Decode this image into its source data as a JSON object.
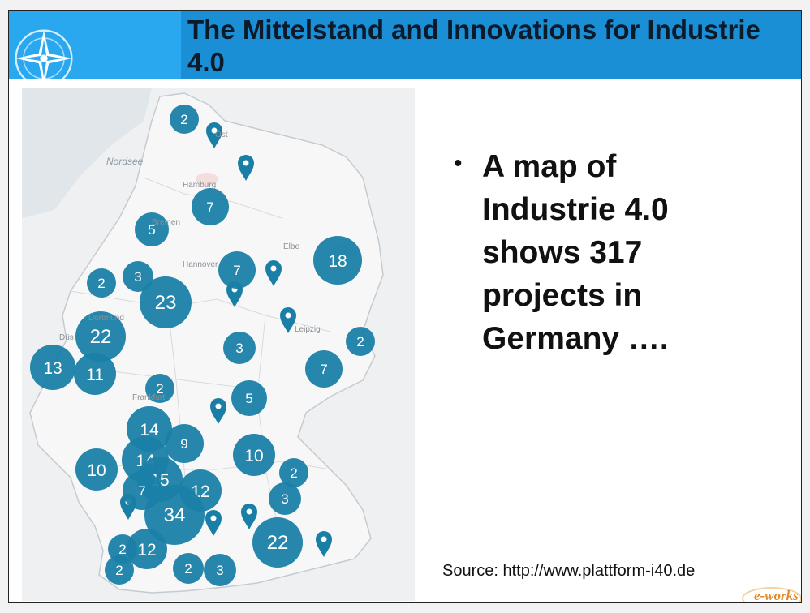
{
  "header": {
    "title": "The Mittelstand and Innovations for Industrie 4.0",
    "logo_icon": "compass-star-icon",
    "colors": {
      "band": "#1a8fd6",
      "band_left": "#2aa8ef",
      "title_text": "#0d1a2a"
    }
  },
  "map": {
    "marker_color": "#1a7fa6",
    "places": {
      "nordsee": "Nordsee",
      "ostsee": "Ost",
      "hamburg": "Hamburg",
      "bremen": "Bremen",
      "hannover": "Hannover",
      "elbe": "Elbe",
      "leipzig": "Leipzig",
      "duesseldorf": "Düs",
      "dortmund": "Dortmund",
      "frankfurt": "Frankfurt"
    },
    "clusters": [
      {
        "id": "c1",
        "count": "2"
      },
      {
        "id": "c2",
        "count": "7"
      },
      {
        "id": "c3",
        "count": "5"
      },
      {
        "id": "c4",
        "count": "18"
      },
      {
        "id": "c5",
        "count": "2"
      },
      {
        "id": "c6",
        "count": "3"
      },
      {
        "id": "c7",
        "count": "7"
      },
      {
        "id": "c8",
        "count": "23"
      },
      {
        "id": "c9",
        "count": "22"
      },
      {
        "id": "c10",
        "count": "2"
      },
      {
        "id": "c11",
        "count": "3"
      },
      {
        "id": "c12",
        "count": "13"
      },
      {
        "id": "c13",
        "count": "11"
      },
      {
        "id": "c14",
        "count": "7"
      },
      {
        "id": "c15",
        "count": "2"
      },
      {
        "id": "c16",
        "count": "5"
      },
      {
        "id": "c17",
        "count": "14"
      },
      {
        "id": "c18",
        "count": "9"
      },
      {
        "id": "c19",
        "count": "10"
      },
      {
        "id": "c20",
        "count": "14"
      },
      {
        "id": "c21",
        "count": "10"
      },
      {
        "id": "c22",
        "count": "15"
      },
      {
        "id": "c23",
        "count": "7"
      },
      {
        "id": "c24",
        "count": "2"
      },
      {
        "id": "c25",
        "count": "12"
      },
      {
        "id": "c26",
        "count": "3"
      },
      {
        "id": "c27",
        "count": "34"
      },
      {
        "id": "c28",
        "count": "22"
      },
      {
        "id": "c29",
        "count": "2"
      },
      {
        "id": "c30",
        "count": "12"
      },
      {
        "id": "c31",
        "count": "2"
      },
      {
        "id": "c32",
        "count": "2"
      },
      {
        "id": "c33",
        "count": "3"
      }
    ]
  },
  "bullet": {
    "symbol": "•",
    "lines": [
      "A map of",
      "Industrie 4.0",
      "shows 317",
      "projects in",
      "Germany …."
    ]
  },
  "source": "Source: http://www.plattform-i40.de",
  "watermark": "e-works"
}
